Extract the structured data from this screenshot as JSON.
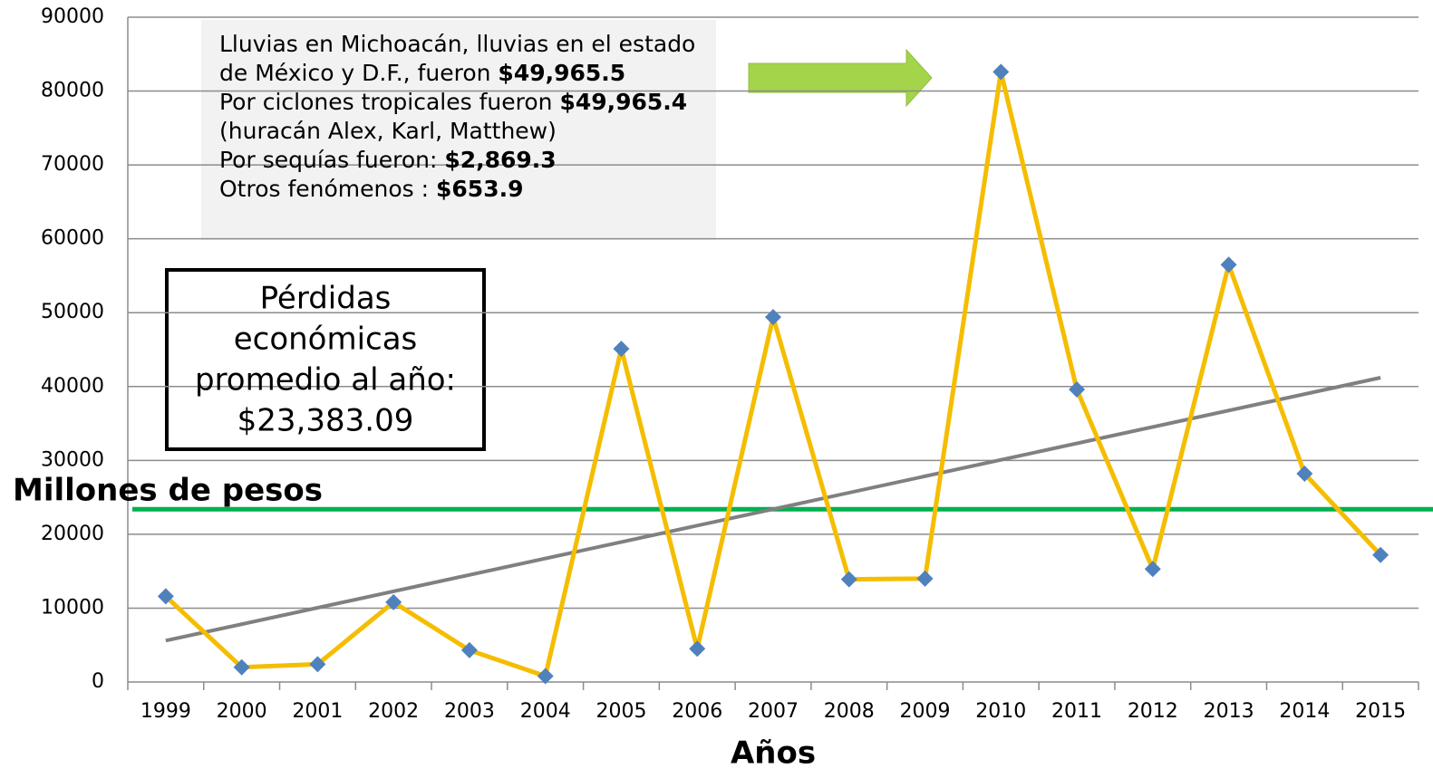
{
  "chart_data": {
    "type": "line",
    "x_label": "Años",
    "y_label": "Millones de pesos",
    "categories": [
      "1999",
      "2000",
      "2001",
      "2002",
      "2003",
      "2004",
      "2005",
      "2006",
      "2007",
      "2008",
      "2009",
      "2010",
      "2011",
      "2012",
      "2013",
      "2014",
      "2015"
    ],
    "series": [
      {
        "color": "#f5bd00",
        "marker_color": "#4f81bd",
        "values": [
          11600,
          2000,
          2400,
          10800,
          4300,
          800,
          45100,
          4500,
          49400,
          13900,
          14000,
          82600,
          39600,
          15300,
          56500,
          28200,
          17200
        ]
      }
    ],
    "trend": {
      "color": "#808080",
      "values": [
        5600,
        41200
      ]
    },
    "average": {
      "color": "#00b050",
      "value": 23383.09,
      "label_lines": [
        "Pérdidas",
        "económicas",
        "promedio al año:"
      ],
      "value_label": "$23,383.09"
    },
    "ylim": [
      0,
      90000
    ],
    "yticks": [
      0,
      10000,
      20000,
      30000,
      40000,
      50000,
      60000,
      70000,
      80000,
      90000
    ],
    "grid": true,
    "note_lines": [
      {
        "text": "Lluvias en Michoacán, lluvias en el estado"
      },
      {
        "text": "de México y D.F., fueron ",
        "bold": "$49,965.5"
      },
      {
        "text": "Por ciclones tropicales fueron ",
        "bold": "$49,965.4"
      },
      {
        "text": "(huracán Alex, Karl, Matthew)"
      },
      {
        "text": "Por sequías fueron: ",
        "bold": "$2,869.3"
      },
      {
        "text": "Otros fenómenos : ",
        "bold": "$653.9"
      }
    ]
  }
}
